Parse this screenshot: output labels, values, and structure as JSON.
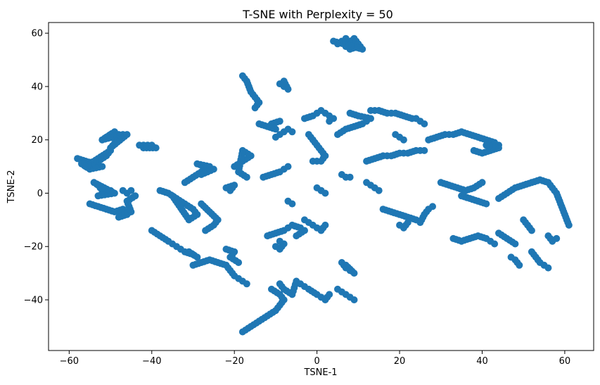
{
  "chart_data": {
    "type": "scatter",
    "title": "T-SNE with Perplexity = 50",
    "xlabel": "TSNE-1",
    "ylabel": "TSNE-2",
    "xlim": [
      -65,
      67
    ],
    "ylim": [
      -59,
      64
    ],
    "xticks": [
      -60,
      -40,
      -20,
      0,
      20,
      40,
      60
    ],
    "yticks": [
      -40,
      -20,
      0,
      20,
      40,
      60
    ],
    "xtick_labels": [
      "−60",
      "−40",
      "−20",
      "0",
      "20",
      "40",
      "60"
    ],
    "ytick_labels": [
      "−40",
      "−20",
      "0",
      "20",
      "40",
      "60"
    ],
    "grid": false,
    "color": "#1f77b4",
    "clusters": [
      {
        "x": [
          -50,
          -48,
          -51,
          -49,
          -52,
          -47,
          -50,
          -46
        ],
        "y": [
          22,
          22,
          21,
          23,
          20,
          22,
          17,
          22
        ]
      },
      {
        "x": [
          -58,
          -56,
          -54,
          -52,
          -55,
          -57,
          -53,
          -51,
          -50,
          -56
        ],
        "y": [
          13,
          12,
          11,
          10,
          9,
          11,
          12,
          14,
          16,
          10
        ]
      },
      {
        "x": [
          -43,
          -41,
          -39,
          -42,
          -40
        ],
        "y": [
          18,
          18,
          17,
          17,
          18
        ]
      },
      {
        "x": [
          -53,
          -52,
          -51,
          -50,
          -53,
          -49,
          -54,
          -52
        ],
        "y": [
          3,
          1,
          0,
          1,
          -1,
          0,
          4,
          2
        ]
      },
      {
        "x": [
          -55,
          -53,
          -51,
          -49,
          -47,
          -46,
          -48,
          -45,
          -46,
          -44
        ],
        "y": [
          -4,
          -5,
          -6,
          -7,
          -6,
          -8,
          -9,
          -7,
          -3,
          -1
        ]
      },
      {
        "x": [
          -47,
          -46,
          -45
        ],
        "y": [
          1,
          0,
          1
        ]
      },
      {
        "x": [
          -40,
          -38,
          -36,
          -35,
          -34,
          -33,
          -32,
          -30,
          -29,
          -31
        ],
        "y": [
          -14,
          -16,
          -18,
          -19,
          -20,
          -21,
          -22,
          -23,
          -24,
          -22
        ]
      },
      {
        "x": [
          -38,
          -36,
          -34,
          -32,
          -30,
          -29,
          -31,
          -35
        ],
        "y": [
          1,
          0,
          -2,
          -4,
          -6,
          -8,
          -10,
          -1
        ]
      },
      {
        "x": [
          -32,
          -30,
          -28,
          -27,
          -29,
          -26,
          -25,
          -28
        ],
        "y": [
          4,
          6,
          8,
          10,
          11,
          10,
          9,
          7
        ]
      },
      {
        "x": [
          -28,
          -26,
          -24,
          -25,
          -27
        ],
        "y": [
          -4,
          -7,
          -10,
          -12,
          -14
        ]
      },
      {
        "x": [
          -30,
          -28,
          -26,
          -24,
          -22,
          -21,
          -20,
          -19,
          -18,
          -17
        ],
        "y": [
          -27,
          -26,
          -25,
          -26,
          -27,
          -29,
          -31,
          -32,
          -33,
          -34
        ]
      },
      {
        "x": [
          -22,
          -20,
          -21,
          -19
        ],
        "y": [
          -21,
          -22,
          -24,
          -26
        ]
      },
      {
        "x": [
          -20,
          -18,
          -16,
          -18,
          -19,
          -17
        ],
        "y": [
          10,
          12,
          14,
          16,
          8,
          6
        ]
      },
      {
        "x": [
          -22,
          -20,
          -21
        ],
        "y": [
          2,
          3,
          1
        ]
      },
      {
        "x": [
          -18,
          -17,
          -16,
          -15,
          -14,
          -15
        ],
        "y": [
          44,
          42,
          38,
          36,
          34,
          32
        ]
      },
      {
        "x": [
          -14,
          -12,
          -10,
          -11,
          -9
        ],
        "y": [
          26,
          25,
          24,
          26,
          27
        ]
      },
      {
        "x": [
          -9,
          -8,
          -7,
          -8
        ],
        "y": [
          41,
          40,
          39,
          42
        ]
      },
      {
        "x": [
          -10,
          -9,
          -8,
          -7,
          -6
        ],
        "y": [
          21,
          22,
          23,
          24,
          23
        ]
      },
      {
        "x": [
          -13,
          -11,
          -9,
          -8,
          -7
        ],
        "y": [
          6,
          7,
          8,
          9,
          10
        ]
      },
      {
        "x": [
          -12,
          -10,
          -8,
          -7,
          -6,
          -4,
          -3,
          -5
        ],
        "y": [
          -16,
          -15,
          -14,
          -13,
          -12,
          -13,
          -14,
          -16
        ]
      },
      {
        "x": [
          -10,
          -9,
          -8,
          -9
        ],
        "y": [
          -20,
          -21,
          -19,
          -18
        ]
      },
      {
        "x": [
          -7,
          -6
        ],
        "y": [
          -3,
          -4
        ]
      },
      {
        "x": [
          -18,
          -16,
          -14,
          -12,
          -10,
          -9,
          -8,
          -9,
          -11
        ],
        "y": [
          -52,
          -50,
          -48,
          -46,
          -44,
          -42,
          -40,
          -38,
          -36
        ]
      },
      {
        "x": [
          -9,
          -8,
          -6,
          -5,
          -4,
          -3
        ],
        "y": [
          -34,
          -36,
          -38,
          -33,
          -34,
          -35
        ]
      },
      {
        "x": [
          -3,
          -1,
          0,
          1,
          2,
          3,
          4,
          3
        ],
        "y": [
          28,
          29,
          30,
          31,
          30,
          29,
          28,
          27
        ]
      },
      {
        "x": [
          -2,
          -1,
          0,
          1,
          2,
          1,
          -1
        ],
        "y": [
          22,
          20,
          18,
          16,
          14,
          12,
          12
        ]
      },
      {
        "x": [
          0,
          1,
          2,
          1
        ],
        "y": [
          2,
          1,
          0,
          1
        ]
      },
      {
        "x": [
          -3,
          -2,
          -1,
          0,
          1,
          2
        ],
        "y": [
          -10,
          -11,
          -12,
          -13,
          -14,
          -12
        ]
      },
      {
        "x": [
          -2,
          0,
          1,
          2,
          3
        ],
        "y": [
          -36,
          -38,
          -39,
          -40,
          -38
        ]
      },
      {
        "x": [
          5,
          6,
          7,
          8,
          9,
          10,
          8,
          7,
          9,
          11,
          4
        ],
        "y": [
          56,
          57,
          58,
          57,
          56,
          55,
          54,
          55,
          58,
          54,
          57
        ]
      },
      {
        "x": [
          5,
          7,
          9,
          11,
          12,
          13,
          10,
          8
        ],
        "y": [
          22,
          24,
          25,
          26,
          27,
          28,
          29,
          30
        ]
      },
      {
        "x": [
          6,
          7,
          8
        ],
        "y": [
          7,
          6,
          6
        ]
      },
      {
        "x": [
          6,
          7,
          8,
          9,
          7
        ],
        "y": [
          -26,
          -28,
          -29,
          -30,
          -27
        ]
      },
      {
        "x": [
          5,
          6,
          7,
          8,
          9
        ],
        "y": [
          -36,
          -37,
          -38,
          -39,
          -40
        ]
      },
      {
        "x": [
          13,
          15,
          17,
          19,
          21,
          23,
          24,
          25,
          26
        ],
        "y": [
          31,
          31,
          30,
          30,
          29,
          28,
          28,
          27,
          26
        ]
      },
      {
        "x": [
          12,
          14,
          16,
          18,
          20,
          22,
          24,
          26
        ],
        "y": [
          12,
          13,
          14,
          14,
          15,
          15,
          16,
          16
        ]
      },
      {
        "x": [
          12,
          13,
          14,
          15
        ],
        "y": [
          4,
          3,
          2,
          1
        ]
      },
      {
        "x": [
          16,
          18,
          20,
          22,
          24,
          25,
          26,
          27,
          28
        ],
        "y": [
          -6,
          -7,
          -8,
          -9,
          -10,
          -11,
          -8,
          -6,
          -5
        ]
      },
      {
        "x": [
          20,
          21,
          22
        ],
        "y": [
          -12,
          -13,
          -11
        ]
      },
      {
        "x": [
          19,
          20,
          21
        ],
        "y": [
          22,
          21,
          20
        ]
      },
      {
        "x": [
          27,
          29,
          31,
          33,
          35,
          37,
          39,
          41,
          43,
          44
        ],
        "y": [
          20,
          21,
          22,
          22,
          23,
          22,
          21,
          20,
          19,
          18
        ]
      },
      {
        "x": [
          38,
          40,
          42,
          44,
          41
        ],
        "y": [
          16,
          15,
          16,
          17,
          18
        ]
      },
      {
        "x": [
          30,
          32,
          34,
          36,
          38,
          40
        ],
        "y": [
          4,
          3,
          2,
          1,
          2,
          4
        ]
      },
      {
        "x": [
          35,
          37,
          39,
          41
        ],
        "y": [
          -1,
          -2,
          -3,
          -4
        ]
      },
      {
        "x": [
          33,
          35,
          37,
          39,
          41,
          42,
          43
        ],
        "y": [
          -17,
          -18,
          -17,
          -16,
          -17,
          -18,
          -19
        ]
      },
      {
        "x": [
          44,
          46,
          48
        ],
        "y": [
          -15,
          -17,
          -19
        ]
      },
      {
        "x": [
          47,
          48,
          49
        ],
        "y": [
          -24,
          -25,
          -27
        ]
      },
      {
        "x": [
          44,
          46,
          48,
          50,
          52,
          54,
          56,
          57,
          58,
          59,
          60,
          61
        ],
        "y": [
          -2,
          0,
          2,
          3,
          4,
          5,
          4,
          2,
          0,
          -4,
          -8,
          -12
        ]
      },
      {
        "x": [
          52,
          53,
          54,
          55,
          56
        ],
        "y": [
          -22,
          -24,
          -26,
          -27,
          -28
        ]
      },
      {
        "x": [
          56,
          57,
          58
        ],
        "y": [
          -16,
          -18,
          -17
        ]
      },
      {
        "x": [
          50,
          51,
          52
        ],
        "y": [
          -10,
          -12,
          -14
        ]
      }
    ]
  }
}
